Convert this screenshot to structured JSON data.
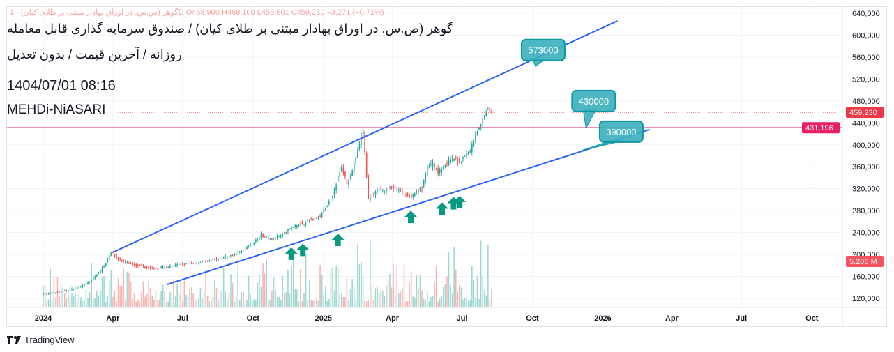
{
  "header": {
    "legend_line": "گوهر (ص.س. در اوراق بهادار مبتنی بر طلای کیان) · 1D",
    "ohlc": {
      "open": "O468,900",
      "high": "H469,100",
      "low": "L456,601",
      "close": "C459,230",
      "change": "−3,271 (−0.71%)"
    },
    "title": "گوهر (ص.س. در اوراق بهادار مبتنی بر طلای کیان) / صندوق سرمایه گذاری قابل معامله",
    "subtitle": "روزانه / آخرین قیمت / بدون تعدیل",
    "datetime": "1404/07/01 08:16",
    "author": "MEHDi-NiASARI"
  },
  "footer": {
    "brand": "TradingView"
  },
  "colors": {
    "up": "#26a69a",
    "down": "#ef5350",
    "trendline": "#2962ff",
    "hline": "#e91e63",
    "callout": "#3ab0bc",
    "arrow": "#089981"
  },
  "chart_data": {
    "type": "candlestick",
    "x_start": "2024-01-01",
    "interval": "week",
    "closes": [
      128000,
      130000,
      131000,
      133000,
      135000,
      137000,
      140000,
      145000,
      150000,
      160000,
      170000,
      185000,
      205000,
      195000,
      188000,
      185000,
      182000,
      180000,
      178000,
      176000,
      175000,
      176000,
      177000,
      178000,
      180000,
      182000,
      183000,
      184000,
      185000,
      187000,
      188000,
      190000,
      192000,
      195000,
      197000,
      200000,
      205000,
      210000,
      218000,
      225000,
      235000,
      230000,
      228000,
      232000,
      238000,
      245000,
      250000,
      255000,
      258000,
      262000,
      265000,
      270000,
      285000,
      300000,
      330000,
      360000,
      330000,
      350000,
      390000,
      425000,
      300000,
      310000,
      320000,
      315000,
      325000,
      320000,
      315000,
      310000,
      305000,
      315000,
      320000,
      360000,
      365000,
      350000,
      360000,
      370000,
      375000,
      370000,
      380000,
      390000,
      420000,
      435000,
      465000,
      459230
    ],
    "ylim": [
      100000,
      650000
    ],
    "y_ticks": [
      "640,000",
      "600,000",
      "560,000",
      "520,000",
      "480,000",
      "440,000",
      "400,000",
      "360,000",
      "320,000",
      "280,000",
      "240,000",
      "200,000",
      "160,000",
      "120,000"
    ],
    "x_ticks": [
      {
        "label": "2024",
        "date": "2024-01-01",
        "bold": true
      },
      {
        "label": "Apr",
        "date": "2024-04-01"
      },
      {
        "label": "Jul",
        "date": "2024-07-01"
      },
      {
        "label": "Oct",
        "date": "2024-10-01"
      },
      {
        "label": "2025",
        "date": "2025-01-01",
        "bold": true
      },
      {
        "label": "Apr",
        "date": "2025-04-01"
      },
      {
        "label": "Jul",
        "date": "2025-07-01"
      },
      {
        "label": "Oct",
        "date": "2025-10-01"
      },
      {
        "label": "2026",
        "date": "2026-01-01",
        "bold": true
      },
      {
        "label": "Apr",
        "date": "2026-04-01"
      },
      {
        "label": "Jul",
        "date": "2026-07-01"
      },
      {
        "label": "Oct",
        "date": "2026-10-01"
      }
    ],
    "last_price": {
      "value": 459230,
      "label": "459,230"
    },
    "horizontal_line": {
      "value": 431196,
      "label": "431,196"
    },
    "volume_label": "5.206 M",
    "trendlines": [
      {
        "from": [
          "2024-04-01",
          204000
        ],
        "to": [
          "2026-01-20",
          626000
        ]
      },
      {
        "from": [
          "2024-06-10",
          145000
        ],
        "to": [
          "2026-03-03",
          428000
        ]
      }
    ],
    "callouts": [
      {
        "text": "573000",
        "date": "2025-10-15",
        "price": 573000,
        "tip": [
          "2025-10-05",
          543000
        ]
      },
      {
        "text": "430000",
        "date": "2025-12-20",
        "price": 480000,
        "tip": [
          "2025-12-10",
          430000
        ]
      },
      {
        "text": "390000",
        "date": "2026-01-25",
        "price": 424000,
        "tip": [
          "2025-12-05",
          390000
        ]
      }
    ],
    "buy_arrows": [
      {
        "date": "2024-11-20",
        "price": 213000
      },
      {
        "date": "2024-12-05",
        "price": 220000
      },
      {
        "date": "2025-01-20",
        "price": 238000
      },
      {
        "date": "2025-04-25",
        "price": 280000
      },
      {
        "date": "2025-06-05",
        "price": 295000
      },
      {
        "date": "2025-06-20",
        "price": 305000
      },
      {
        "date": "2025-06-28",
        "price": 307000
      }
    ]
  }
}
